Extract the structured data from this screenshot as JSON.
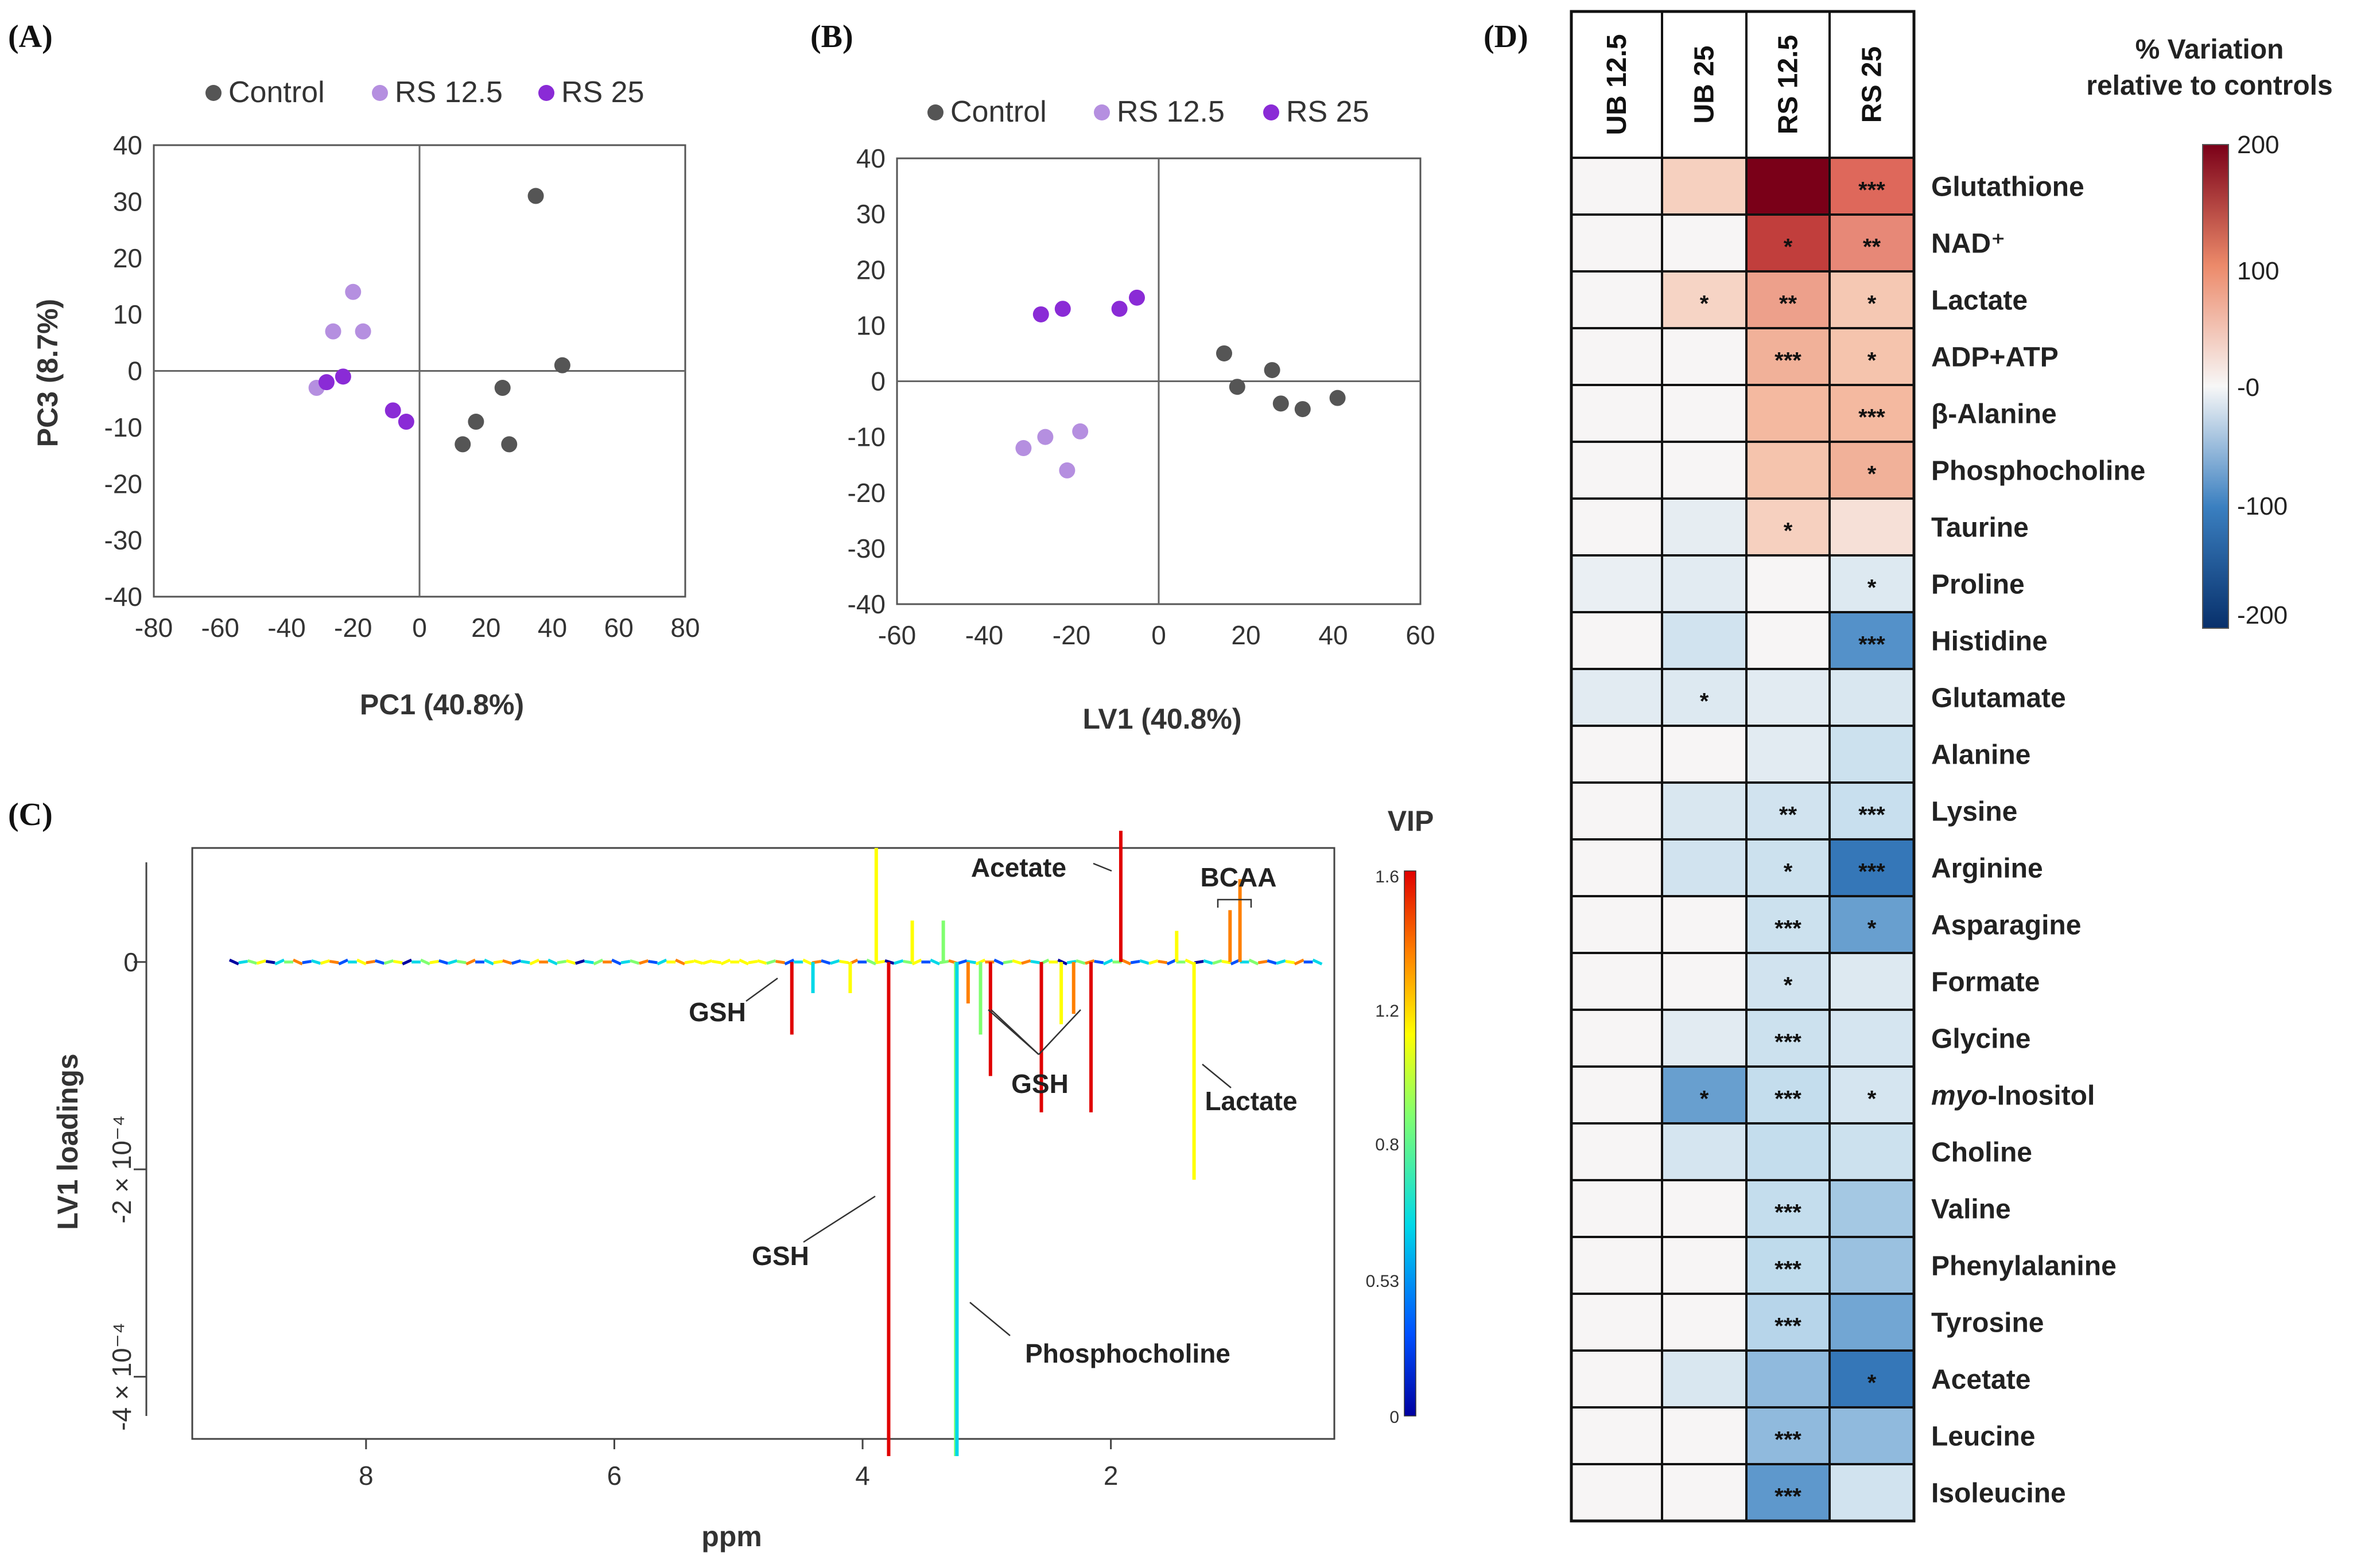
{
  "panels": {
    "a": {
      "letter": "(A)"
    },
    "b": {
      "letter": "(B)"
    },
    "c": {
      "letter": "(C)"
    },
    "d": {
      "letter": "(D)"
    }
  },
  "legend": [
    {
      "label": "Control",
      "color": "#555555"
    },
    {
      "label": "RS 12.5",
      "color": "#b58fe0"
    },
    {
      "label": "RS 25",
      "color": "#8a2bd6"
    }
  ],
  "chart_data": [
    {
      "id": "A",
      "type": "scatter",
      "xlabel": "PC1 (40.8%)",
      "ylabel": "PC3 (8.7%)",
      "xlim": [
        -80,
        80
      ],
      "ylim": [
        -40,
        40
      ],
      "xticks": [
        -80,
        -60,
        -40,
        -20,
        0,
        20,
        40,
        60,
        80
      ],
      "yticks": [
        -40,
        -30,
        -20,
        -10,
        0,
        10,
        20,
        30,
        40
      ],
      "series": [
        {
          "name": "Control",
          "color": "#555555",
          "points": [
            [
              35,
              31
            ],
            [
              43,
              1
            ],
            [
              25,
              -3
            ],
            [
              17,
              -9
            ],
            [
              13,
              -13
            ],
            [
              27,
              -13
            ]
          ]
        },
        {
          "name": "RS 12.5",
          "color": "#b58fe0",
          "points": [
            [
              -20,
              14
            ],
            [
              -26,
              7
            ],
            [
              -17,
              7
            ],
            [
              -31,
              -3
            ]
          ]
        },
        {
          "name": "RS 25",
          "color": "#8a2bd6",
          "points": [
            [
              -28,
              -2
            ],
            [
              -23,
              -1
            ],
            [
              -8,
              -7
            ],
            [
              -4,
              -9
            ]
          ]
        }
      ]
    },
    {
      "id": "B",
      "type": "scatter",
      "xlabel": "LV1 (40.8%)",
      "ylabel": "",
      "xlim": [
        -60,
        60
      ],
      "ylim": [
        -40,
        40
      ],
      "xticks": [
        -60,
        -40,
        -20,
        0,
        20,
        40,
        60
      ],
      "yticks": [
        -40,
        -30,
        -20,
        -10,
        0,
        10,
        20,
        30,
        40
      ],
      "series": [
        {
          "name": "Control",
          "color": "#555555",
          "points": [
            [
              15,
              5
            ],
            [
              18,
              -1
            ],
            [
              26,
              2
            ],
            [
              28,
              -4
            ],
            [
              33,
              -5
            ],
            [
              41,
              -3
            ]
          ]
        },
        {
          "name": "RS 12.5",
          "color": "#b58fe0",
          "points": [
            [
              -31,
              -12
            ],
            [
              -26,
              -10
            ],
            [
              -18,
              -9
            ],
            [
              -21,
              -16
            ]
          ]
        },
        {
          "name": "RS 25",
          "color": "#8a2bd6",
          "points": [
            [
              -27,
              12
            ],
            [
              -22,
              13
            ],
            [
              -9,
              13
            ],
            [
              -5,
              15
            ]
          ]
        }
      ]
    },
    {
      "id": "C",
      "type": "line",
      "xlabel": "ppm",
      "ylabel": "LV1 loadings",
      "xlim": [
        9.4,
        0.2
      ],
      "ylim": [
        -0.00046,
        0.00011
      ],
      "xticks": [
        8,
        6,
        4,
        2
      ],
      "yticks": [
        {
          "value": 0,
          "label": "0"
        },
        {
          "value": -0.0002,
          "label": "-2 × 10⁻⁴"
        },
        {
          "value": -0.0004,
          "label": "-4 × 10⁻⁴"
        }
      ],
      "colorbar": {
        "title": "VIP",
        "ticks": [
          "1.6",
          "1.2",
          "0.8",
          "0.53",
          "0"
        ]
      },
      "peaks": [
        {
          "ppm": 4.57,
          "value": -7e-05,
          "vip": 1.6
        },
        {
          "ppm": 3.79,
          "value": -0.000555,
          "vip": 1.6
        },
        {
          "ppm": 3.25,
          "value": -0.000915,
          "vip": 1.05
        },
        {
          "ppm": 3.24,
          "value": -0.00049,
          "vip": 0.75
        },
        {
          "ppm": 2.97,
          "value": -0.00011,
          "vip": 1.6
        },
        {
          "ppm": 2.56,
          "value": -0.000145,
          "vip": 1.6
        },
        {
          "ppm": 2.16,
          "value": -0.000145,
          "vip": 1.6
        },
        {
          "ppm": 1.92,
          "value": 0.00019,
          "vip": 1.6
        },
        {
          "ppm": 1.33,
          "value": -0.00021,
          "vip": 1.3
        },
        {
          "ppm": 0.96,
          "value": 8e-05,
          "vip": 1.4
        },
        {
          "ppm": 1.04,
          "value": 5e-05,
          "vip": 1.35
        },
        {
          "ppm": 3.89,
          "value": 0.00011,
          "vip": 1.2
        },
        {
          "ppm": 3.6,
          "value": 4e-05,
          "vip": 1.25
        },
        {
          "ppm": 3.35,
          "value": 4e-05,
          "vip": 0.9
        },
        {
          "ppm": 3.15,
          "value": -4e-05,
          "vip": 1.4
        },
        {
          "ppm": 3.05,
          "value": -7e-05,
          "vip": 0.9
        },
        {
          "ppm": 2.4,
          "value": -6e-05,
          "vip": 1.3
        },
        {
          "ppm": 2.3,
          "value": -5e-05,
          "vip": 1.35
        },
        {
          "ppm": 1.47,
          "value": 3e-05,
          "vip": 1.3
        },
        {
          "ppm": 4.1,
          "value": -3e-05,
          "vip": 1.2
        },
        {
          "ppm": 4.4,
          "value": -3e-05,
          "vip": 0.6
        }
      ],
      "annotations": [
        "Acetate",
        "BCAA",
        "GSH",
        "GSH",
        "GSH",
        "Lactate",
        "GSH",
        "Phosphocholine"
      ]
    },
    {
      "id": "D",
      "type": "heatmap",
      "title": "% Variation relative to controls",
      "title_lines": [
        "% Variation",
        "relative to controls"
      ],
      "columns": [
        "UB 12.5",
        "UB 25",
        "RS 12.5",
        "RS 25"
      ],
      "colorbar": {
        "range": [
          -200,
          200
        ],
        "ticks": [
          "200",
          "100",
          "-0",
          "-100",
          "-200"
        ]
      },
      "rows": [
        {
          "name": "Glutathione",
          "values": [
            0,
            45,
            200,
            120
          ],
          "stars": [
            "",
            "",
            "",
            "***"
          ]
        },
        {
          "name": "NAD⁺",
          "values": [
            0,
            0,
            150,
            100
          ],
          "stars": [
            "",
            "",
            "*",
            "**"
          ]
        },
        {
          "name": "Lactate",
          "values": [
            0,
            40,
            85,
            55
          ],
          "stars": [
            "",
            "*",
            "**",
            "*"
          ]
        },
        {
          "name": "ADP+ATP",
          "values": [
            0,
            0,
            75,
            60
          ],
          "stars": [
            "",
            "",
            "***",
            "*"
          ]
        },
        {
          "name": "β-Alanine",
          "values": [
            0,
            0,
            70,
            70
          ],
          "stars": [
            "",
            "",
            "",
            "***"
          ]
        },
        {
          "name": "Phosphocholine",
          "values": [
            0,
            0,
            60,
            75
          ],
          "stars": [
            "",
            "",
            "",
            "*"
          ]
        },
        {
          "name": "Taurine",
          "values": [
            0,
            -20,
            45,
            25
          ],
          "stars": [
            "",
            "",
            "*",
            ""
          ]
        },
        {
          "name": "Proline",
          "values": [
            -15,
            -25,
            0,
            -30
          ],
          "stars": [
            "",
            "",
            "",
            "*"
          ]
        },
        {
          "name": "Histidine",
          "values": [
            0,
            -45,
            0,
            -120
          ],
          "stars": [
            "",
            "",
            "",
            "***"
          ]
        },
        {
          "name": "Glutamate",
          "values": [
            -25,
            -30,
            -25,
            -35
          ],
          "stars": [
            "",
            "*",
            "",
            ""
          ]
        },
        {
          "name": "Alanine",
          "values": [
            0,
            0,
            -25,
            -50
          ],
          "stars": [
            "",
            "",
            "",
            ""
          ]
        },
        {
          "name": "Lysine",
          "values": [
            0,
            -35,
            -45,
            -55
          ],
          "stars": [
            "",
            "",
            "**",
            "***"
          ]
        },
        {
          "name": "Arginine",
          "values": [
            0,
            -45,
            -50,
            -140
          ],
          "stars": [
            "",
            "",
            "*",
            "***"
          ]
        },
        {
          "name": "Asparagine",
          "values": [
            0,
            0,
            -50,
            -110
          ],
          "stars": [
            "",
            "",
            "***",
            "*"
          ]
        },
        {
          "name": "Formate",
          "values": [
            0,
            0,
            -45,
            -30
          ],
          "stars": [
            "",
            "",
            "*",
            ""
          ]
        },
        {
          "name": "Glycine",
          "values": [
            0,
            -25,
            -50,
            -40
          ],
          "stars": [
            "",
            "",
            "***",
            ""
          ]
        },
        {
          "name": "myo-Inositol",
          "values": [
            0,
            -110,
            -60,
            -40
          ],
          "stars": [
            "",
            "*",
            "***",
            "*"
          ]
        },
        {
          "name": "Choline",
          "values": [
            0,
            -40,
            -60,
            -50
          ],
          "stars": [
            "",
            "",
            "",
            ""
          ]
        },
        {
          "name": "Valine",
          "values": [
            0,
            0,
            -60,
            -80
          ],
          "stars": [
            "",
            "",
            "***",
            ""
          ]
        },
        {
          "name": "Phenylalanine",
          "values": [
            0,
            0,
            -65,
            -85
          ],
          "stars": [
            "",
            "",
            "***",
            ""
          ]
        },
        {
          "name": "Tyrosine",
          "values": [
            0,
            0,
            -70,
            -105
          ],
          "stars": [
            "",
            "",
            "***",
            ""
          ]
        },
        {
          "name": "Acetate",
          "values": [
            0,
            -35,
            -90,
            -140
          ],
          "stars": [
            "",
            "",
            "",
            "*"
          ]
        },
        {
          "name": "Leucine",
          "values": [
            0,
            0,
            -90,
            -90
          ],
          "stars": [
            "",
            "",
            "***",
            ""
          ]
        },
        {
          "name": "Isoleucine",
          "values": [
            0,
            0,
            -115,
            -45
          ],
          "stars": [
            "",
            "",
            "***",
            ""
          ]
        }
      ]
    }
  ]
}
